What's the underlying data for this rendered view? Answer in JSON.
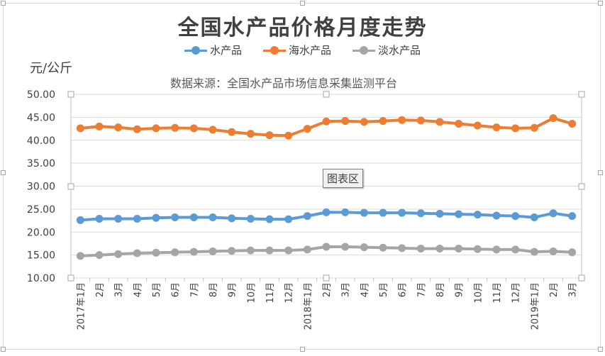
{
  "colors": {
    "series": [
      "#5b9bd5",
      "#ed7d31",
      "#a5a5a5"
    ],
    "grid": "#d9d9d9"
  },
  "chart_data": {
    "type": "line",
    "title": "全国水产品价格月度走势",
    "unit_label": "元/公斤",
    "source_note": "数据来源：全国水产品市场信息采集监测平台",
    "plot_area_label": "图表区",
    "legend_position": "top",
    "grid": true,
    "ylim": [
      10,
      50
    ],
    "yticks": [
      "10.00",
      "15.00",
      "20.00",
      "25.00",
      "30.00",
      "35.00",
      "40.00",
      "45.00",
      "50.00"
    ],
    "categories": [
      "2017年1月",
      "2月",
      "3月",
      "4月",
      "5月",
      "6月",
      "7月",
      "8月",
      "9月",
      "10月",
      "11月",
      "12月",
      "2018年1月",
      "2月",
      "3月",
      "4月",
      "5月",
      "6月",
      "7月",
      "8月",
      "9月",
      "10月",
      "11月",
      "12月",
      "2019年1月",
      "2月",
      "3月"
    ],
    "series": [
      {
        "name": "水产品",
        "values": [
          22.6,
          22.9,
          22.9,
          22.9,
          23.1,
          23.2,
          23.2,
          23.2,
          23.0,
          22.9,
          22.8,
          22.8,
          23.5,
          24.3,
          24.3,
          24.2,
          24.2,
          24.2,
          24.1,
          24.0,
          23.9,
          23.8,
          23.6,
          23.5,
          23.2,
          24.1,
          23.5
        ]
      },
      {
        "name": "海水产品",
        "values": [
          42.6,
          43.0,
          42.8,
          42.4,
          42.6,
          42.7,
          42.6,
          42.3,
          41.8,
          41.4,
          41.1,
          41.0,
          42.5,
          44.1,
          44.2,
          44.0,
          44.2,
          44.4,
          44.3,
          44.0,
          43.6,
          43.2,
          42.8,
          42.6,
          42.7,
          44.8,
          43.6
        ]
      },
      {
        "name": "淡水产品",
        "values": [
          14.8,
          15.0,
          15.2,
          15.4,
          15.5,
          15.6,
          15.7,
          15.8,
          15.9,
          16.0,
          16.0,
          16.0,
          16.2,
          16.8,
          16.8,
          16.7,
          16.6,
          16.5,
          16.4,
          16.4,
          16.4,
          16.3,
          16.2,
          16.2,
          15.7,
          15.8,
          15.6
        ]
      }
    ]
  }
}
